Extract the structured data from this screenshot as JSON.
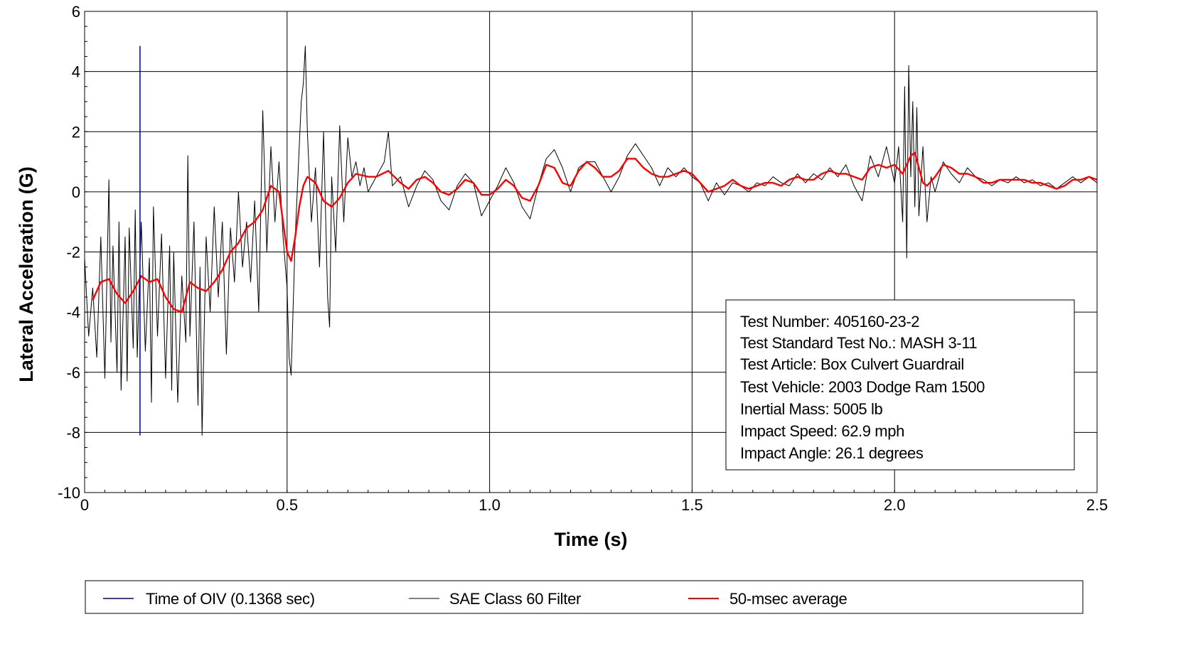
{
  "chart_data": {
    "type": "line",
    "xlabel": "Time (s)",
    "ylabel": "Lateral Acceleration (G)",
    "xlim": [
      0,
      2.5
    ],
    "ylim": [
      -10,
      6
    ],
    "x_ticks": [
      "0",
      "0.5",
      "1.0",
      "1.5",
      "2.0",
      "2.5"
    ],
    "y_ticks": [
      "-10",
      "-8",
      "-6",
      "-4",
      "-2",
      "0",
      "2",
      "4",
      "6"
    ],
    "grid": true,
    "oiv_marker": {
      "x": 0.1368,
      "y_range": [
        -8.1,
        4.85
      ]
    },
    "series": [
      {
        "name": "SAE Class 60 Filter",
        "color": "#000000",
        "points": [
          [
            0.0,
            -2.2
          ],
          [
            0.01,
            -4.8
          ],
          [
            0.02,
            -3.2
          ],
          [
            0.03,
            -5.5
          ],
          [
            0.04,
            -1.5
          ],
          [
            0.05,
            -6.2
          ],
          [
            0.06,
            0.4
          ],
          [
            0.065,
            -5.0
          ],
          [
            0.07,
            -1.8
          ],
          [
            0.08,
            -6.0
          ],
          [
            0.085,
            -1.0
          ],
          [
            0.09,
            -6.6
          ],
          [
            0.1,
            -1.5
          ],
          [
            0.105,
            -6.3
          ],
          [
            0.11,
            -1.2
          ],
          [
            0.12,
            -5.2
          ],
          [
            0.125,
            -0.6
          ],
          [
            0.13,
            -5.5
          ],
          [
            0.14,
            -1.0
          ],
          [
            0.15,
            -5.3
          ],
          [
            0.16,
            -2.2
          ],
          [
            0.165,
            -7.0
          ],
          [
            0.17,
            -0.5
          ],
          [
            0.18,
            -4.8
          ],
          [
            0.19,
            -1.4
          ],
          [
            0.2,
            -6.2
          ],
          [
            0.21,
            -1.8
          ],
          [
            0.215,
            -6.6
          ],
          [
            0.22,
            -2.0
          ],
          [
            0.23,
            -7.0
          ],
          [
            0.24,
            -2.8
          ],
          [
            0.25,
            -5.0
          ],
          [
            0.255,
            1.2
          ],
          [
            0.26,
            -4.8
          ],
          [
            0.27,
            -1.0
          ],
          [
            0.28,
            -7.1
          ],
          [
            0.285,
            -2.5
          ],
          [
            0.29,
            -8.1
          ],
          [
            0.3,
            -1.5
          ],
          [
            0.31,
            -4.0
          ],
          [
            0.32,
            -0.5
          ],
          [
            0.33,
            -3.5
          ],
          [
            0.34,
            -1.0
          ],
          [
            0.35,
            -5.4
          ],
          [
            0.36,
            -1.2
          ],
          [
            0.37,
            -3.0
          ],
          [
            0.38,
            0.0
          ],
          [
            0.39,
            -2.5
          ],
          [
            0.4,
            -1.0
          ],
          [
            0.41,
            -3.0
          ],
          [
            0.42,
            -0.3
          ],
          [
            0.43,
            -4.0
          ],
          [
            0.44,
            2.7
          ],
          [
            0.45,
            -2.0
          ],
          [
            0.46,
            1.5
          ],
          [
            0.47,
            -1.0
          ],
          [
            0.48,
            1.0
          ],
          [
            0.49,
            -1.5
          ],
          [
            0.5,
            -3.2
          ],
          [
            0.505,
            -5.5
          ],
          [
            0.51,
            -6.1
          ],
          [
            0.52,
            -1.5
          ],
          [
            0.53,
            1.5
          ],
          [
            0.535,
            3.0
          ],
          [
            0.54,
            3.6
          ],
          [
            0.545,
            4.85
          ],
          [
            0.55,
            2.0
          ],
          [
            0.56,
            -1.0
          ],
          [
            0.57,
            0.8
          ],
          [
            0.58,
            -2.5
          ],
          [
            0.59,
            2.0
          ],
          [
            0.6,
            -3.5
          ],
          [
            0.605,
            -4.5
          ],
          [
            0.61,
            0.5
          ],
          [
            0.62,
            -2.0
          ],
          [
            0.63,
            2.2
          ],
          [
            0.64,
            -1.0
          ],
          [
            0.65,
            1.8
          ],
          [
            0.66,
            0.5
          ],
          [
            0.67,
            1.0
          ],
          [
            0.68,
            0.2
          ],
          [
            0.69,
            0.8
          ],
          [
            0.7,
            0.0
          ],
          [
            0.72,
            0.5
          ],
          [
            0.74,
            1.0
          ],
          [
            0.75,
            2.0
          ],
          [
            0.76,
            0.2
          ],
          [
            0.78,
            0.5
          ],
          [
            0.8,
            -0.5
          ],
          [
            0.82,
            0.2
          ],
          [
            0.84,
            0.7
          ],
          [
            0.86,
            0.4
          ],
          [
            0.88,
            -0.3
          ],
          [
            0.9,
            -0.6
          ],
          [
            0.92,
            0.2
          ],
          [
            0.94,
            0.6
          ],
          [
            0.96,
            0.3
          ],
          [
            0.98,
            -0.8
          ],
          [
            1.0,
            -0.3
          ],
          [
            1.02,
            0.2
          ],
          [
            1.04,
            0.8
          ],
          [
            1.06,
            0.3
          ],
          [
            1.08,
            -0.5
          ],
          [
            1.1,
            -0.9
          ],
          [
            1.12,
            0.2
          ],
          [
            1.14,
            1.1
          ],
          [
            1.16,
            1.4
          ],
          [
            1.18,
            0.8
          ],
          [
            1.2,
            0.0
          ],
          [
            1.22,
            0.8
          ],
          [
            1.24,
            1.0
          ],
          [
            1.26,
            1.0
          ],
          [
            1.28,
            0.5
          ],
          [
            1.3,
            0.0
          ],
          [
            1.32,
            0.5
          ],
          [
            1.34,
            1.2
          ],
          [
            1.36,
            1.6
          ],
          [
            1.38,
            1.2
          ],
          [
            1.4,
            0.8
          ],
          [
            1.42,
            0.2
          ],
          [
            1.44,
            0.8
          ],
          [
            1.46,
            0.5
          ],
          [
            1.48,
            0.8
          ],
          [
            1.5,
            0.5
          ],
          [
            1.52,
            0.3
          ],
          [
            1.54,
            -0.3
          ],
          [
            1.56,
            0.3
          ],
          [
            1.58,
            -0.1
          ],
          [
            1.6,
            0.3
          ],
          [
            1.62,
            0.2
          ],
          [
            1.64,
            0.0
          ],
          [
            1.66,
            0.3
          ],
          [
            1.68,
            0.2
          ],
          [
            1.7,
            0.5
          ],
          [
            1.72,
            0.3
          ],
          [
            1.74,
            0.2
          ],
          [
            1.76,
            0.6
          ],
          [
            1.78,
            0.3
          ],
          [
            1.8,
            0.6
          ],
          [
            1.82,
            0.4
          ],
          [
            1.84,
            0.8
          ],
          [
            1.86,
            0.5
          ],
          [
            1.88,
            0.9
          ],
          [
            1.9,
            0.2
          ],
          [
            1.92,
            -0.3
          ],
          [
            1.94,
            1.2
          ],
          [
            1.96,
            0.5
          ],
          [
            1.98,
            1.5
          ],
          [
            2.0,
            0.3
          ],
          [
            2.01,
            1.5
          ],
          [
            2.02,
            -1.0
          ],
          [
            2.025,
            3.5
          ],
          [
            2.03,
            -2.2
          ],
          [
            2.035,
            4.2
          ],
          [
            2.04,
            0.5
          ],
          [
            2.045,
            3.0
          ],
          [
            2.05,
            -0.5
          ],
          [
            2.055,
            2.8
          ],
          [
            2.06,
            -0.8
          ],
          [
            2.07,
            1.5
          ],
          [
            2.08,
            -1.0
          ],
          [
            2.09,
            0.5
          ],
          [
            2.1,
            0.0
          ],
          [
            2.12,
            1.0
          ],
          [
            2.14,
            0.6
          ],
          [
            2.16,
            0.3
          ],
          [
            2.18,
            0.8
          ],
          [
            2.2,
            0.5
          ],
          [
            2.22,
            0.4
          ],
          [
            2.24,
            0.2
          ],
          [
            2.26,
            0.4
          ],
          [
            2.28,
            0.3
          ],
          [
            2.3,
            0.5
          ],
          [
            2.32,
            0.3
          ],
          [
            2.34,
            0.4
          ],
          [
            2.36,
            0.2
          ],
          [
            2.38,
            0.3
          ],
          [
            2.4,
            0.1
          ],
          [
            2.42,
            0.3
          ],
          [
            2.44,
            0.5
          ],
          [
            2.46,
            0.3
          ],
          [
            2.48,
            0.5
          ],
          [
            2.5,
            0.3
          ]
        ]
      },
      {
        "name": "50-msec average",
        "color": "#ff0000",
        "points": [
          [
            0.02,
            -3.6
          ],
          [
            0.04,
            -3.0
          ],
          [
            0.06,
            -2.9
          ],
          [
            0.08,
            -3.4
          ],
          [
            0.1,
            -3.7
          ],
          [
            0.12,
            -3.3
          ],
          [
            0.14,
            -2.8
          ],
          [
            0.16,
            -3.0
          ],
          [
            0.18,
            -2.9
          ],
          [
            0.2,
            -3.5
          ],
          [
            0.22,
            -3.9
          ],
          [
            0.24,
            -4.0
          ],
          [
            0.26,
            -3.0
          ],
          [
            0.28,
            -3.2
          ],
          [
            0.3,
            -3.3
          ],
          [
            0.32,
            -3.0
          ],
          [
            0.34,
            -2.6
          ],
          [
            0.36,
            -2.0
          ],
          [
            0.38,
            -1.7
          ],
          [
            0.4,
            -1.2
          ],
          [
            0.42,
            -1.0
          ],
          [
            0.44,
            -0.6
          ],
          [
            0.46,
            0.2
          ],
          [
            0.48,
            0.0
          ],
          [
            0.49,
            -1.0
          ],
          [
            0.5,
            -2.0
          ],
          [
            0.51,
            -2.3
          ],
          [
            0.52,
            -1.5
          ],
          [
            0.53,
            -0.5
          ],
          [
            0.54,
            0.2
          ],
          [
            0.55,
            0.5
          ],
          [
            0.57,
            0.3
          ],
          [
            0.59,
            -0.3
          ],
          [
            0.61,
            -0.5
          ],
          [
            0.63,
            -0.2
          ],
          [
            0.65,
            0.3
          ],
          [
            0.67,
            0.6
          ],
          [
            0.7,
            0.5
          ],
          [
            0.72,
            0.5
          ],
          [
            0.75,
            0.7
          ],
          [
            0.78,
            0.3
          ],
          [
            0.8,
            0.1
          ],
          [
            0.82,
            0.4
          ],
          [
            0.84,
            0.5
          ],
          [
            0.86,
            0.3
          ],
          [
            0.88,
            0.0
          ],
          [
            0.9,
            -0.1
          ],
          [
            0.92,
            0.1
          ],
          [
            0.94,
            0.4
          ],
          [
            0.96,
            0.3
          ],
          [
            0.98,
            -0.1
          ],
          [
            1.0,
            -0.1
          ],
          [
            1.02,
            0.1
          ],
          [
            1.04,
            0.4
          ],
          [
            1.06,
            0.2
          ],
          [
            1.08,
            -0.2
          ],
          [
            1.1,
            -0.3
          ],
          [
            1.12,
            0.2
          ],
          [
            1.14,
            0.9
          ],
          [
            1.16,
            0.8
          ],
          [
            1.18,
            0.3
          ],
          [
            1.2,
            0.2
          ],
          [
            1.22,
            0.7
          ],
          [
            1.24,
            1.0
          ],
          [
            1.26,
            0.8
          ],
          [
            1.28,
            0.5
          ],
          [
            1.3,
            0.5
          ],
          [
            1.32,
            0.7
          ],
          [
            1.34,
            1.1
          ],
          [
            1.36,
            1.1
          ],
          [
            1.38,
            0.8
          ],
          [
            1.4,
            0.6
          ],
          [
            1.42,
            0.5
          ],
          [
            1.44,
            0.5
          ],
          [
            1.46,
            0.6
          ],
          [
            1.48,
            0.7
          ],
          [
            1.5,
            0.6
          ],
          [
            1.52,
            0.3
          ],
          [
            1.54,
            0.0
          ],
          [
            1.56,
            0.1
          ],
          [
            1.58,
            0.2
          ],
          [
            1.6,
            0.4
          ],
          [
            1.62,
            0.2
          ],
          [
            1.64,
            0.1
          ],
          [
            1.66,
            0.2
          ],
          [
            1.68,
            0.3
          ],
          [
            1.7,
            0.3
          ],
          [
            1.72,
            0.2
          ],
          [
            1.74,
            0.4
          ],
          [
            1.76,
            0.5
          ],
          [
            1.78,
            0.4
          ],
          [
            1.8,
            0.4
          ],
          [
            1.82,
            0.6
          ],
          [
            1.84,
            0.7
          ],
          [
            1.86,
            0.6
          ],
          [
            1.88,
            0.6
          ],
          [
            1.9,
            0.5
          ],
          [
            1.92,
            0.4
          ],
          [
            1.94,
            0.8
          ],
          [
            1.96,
            0.9
          ],
          [
            1.98,
            0.8
          ],
          [
            2.0,
            0.9
          ],
          [
            2.02,
            0.6
          ],
          [
            2.04,
            1.2
          ],
          [
            2.05,
            1.3
          ],
          [
            2.06,
            0.8
          ],
          [
            2.07,
            0.3
          ],
          [
            2.08,
            0.2
          ],
          [
            2.1,
            0.5
          ],
          [
            2.12,
            0.9
          ],
          [
            2.14,
            0.8
          ],
          [
            2.16,
            0.6
          ],
          [
            2.18,
            0.6
          ],
          [
            2.2,
            0.5
          ],
          [
            2.22,
            0.3
          ],
          [
            2.24,
            0.3
          ],
          [
            2.26,
            0.4
          ],
          [
            2.28,
            0.4
          ],
          [
            2.3,
            0.4
          ],
          [
            2.32,
            0.4
          ],
          [
            2.34,
            0.3
          ],
          [
            2.36,
            0.3
          ],
          [
            2.38,
            0.2
          ],
          [
            2.4,
            0.1
          ],
          [
            2.42,
            0.2
          ],
          [
            2.44,
            0.4
          ],
          [
            2.46,
            0.4
          ],
          [
            2.48,
            0.5
          ],
          [
            2.5,
            0.4
          ]
        ]
      }
    ],
    "info_box": [
      "Test Number: 405160-23-2",
      "Test Standard Test No.:  MASH 3-11",
      "Test Article: Box Culvert Guardrail",
      "Test Vehicle: 2003 Dodge Ram 1500",
      "Inertial Mass: 5005 lb",
      "Impact Speed: 62.9 mph",
      "Impact Angle: 26.1 degrees"
    ],
    "legend": [
      {
        "label": "Time of OIV (0.1368 sec)",
        "color": "#00008b"
      },
      {
        "label": "SAE Class 60 Filter",
        "color": "#000000"
      },
      {
        "label": "50-msec average",
        "color": "#ff0000"
      }
    ],
    "legend_placement": "bottom"
  }
}
